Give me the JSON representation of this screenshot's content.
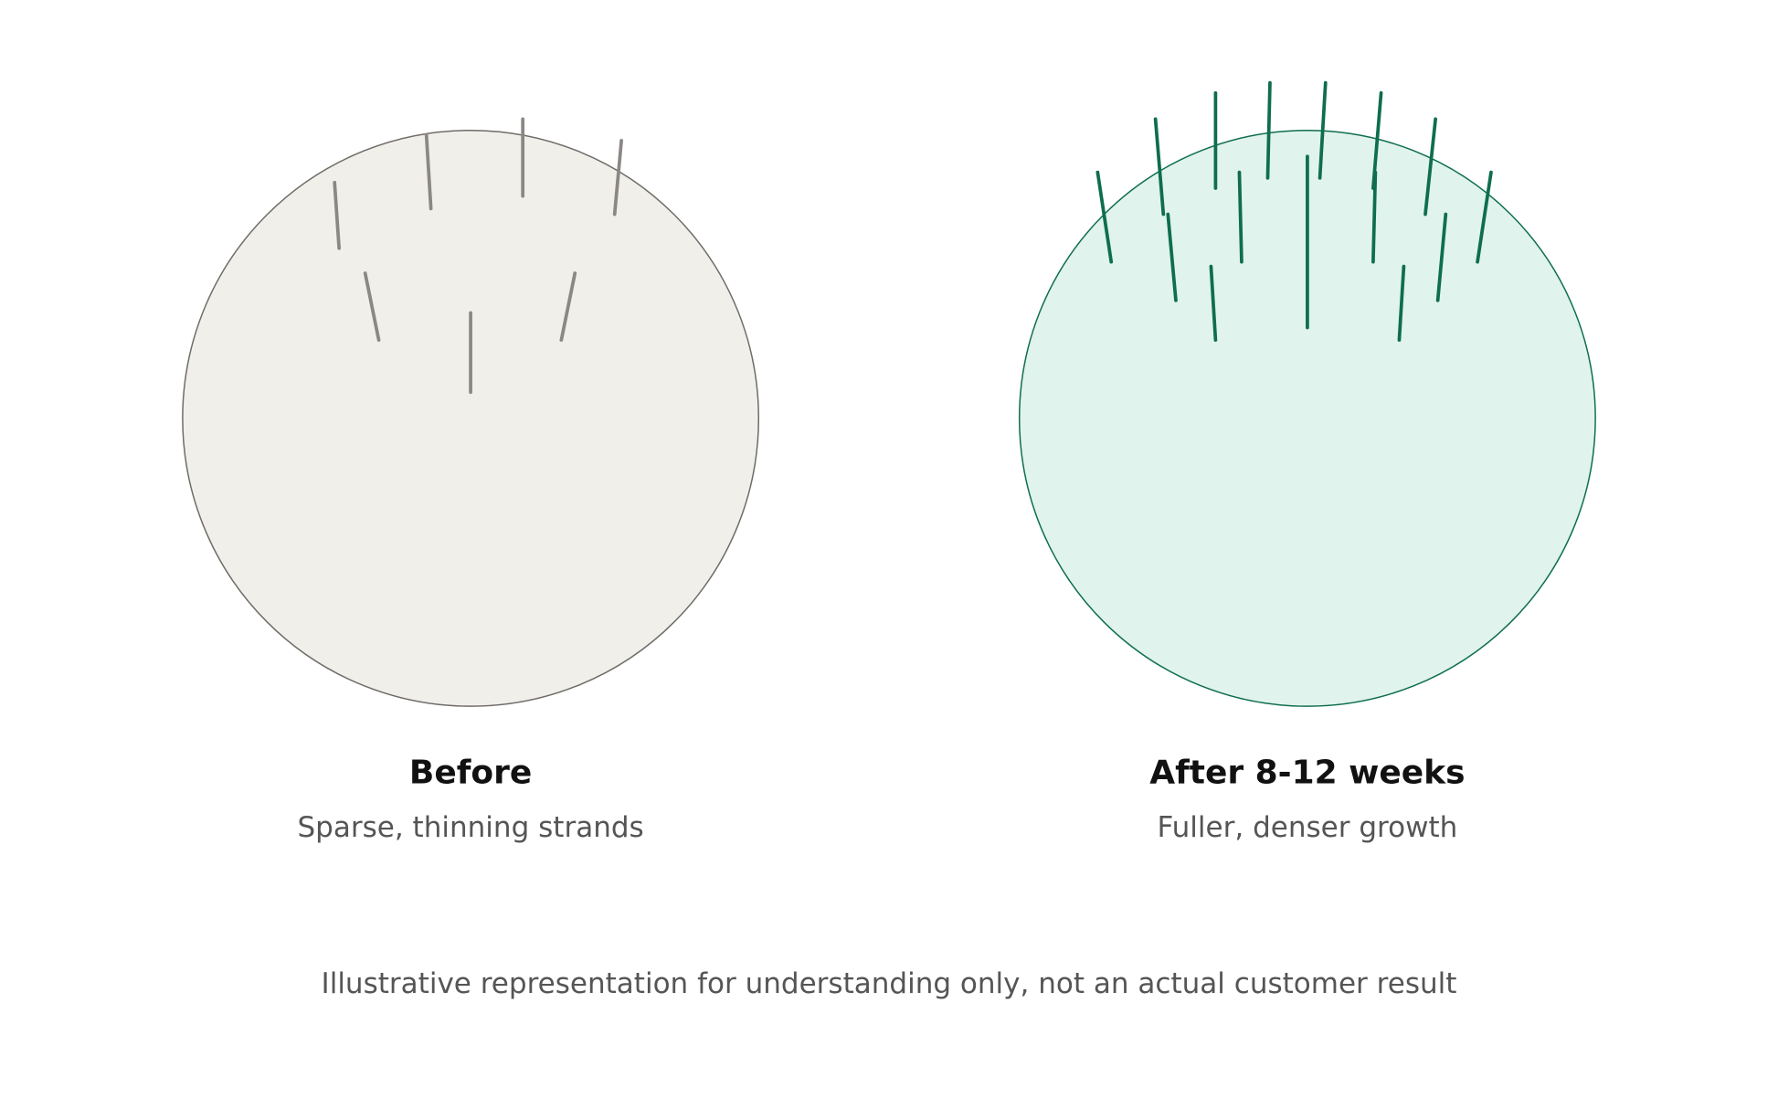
{
  "before": {
    "title": "Before",
    "subtitle": "Sparse, thinning strands"
  },
  "after": {
    "title": "After 8-12 weeks",
    "subtitle": "Fuller, denser growth"
  },
  "footnote": "Illustrative representation for understanding only, not an actual customer result"
}
